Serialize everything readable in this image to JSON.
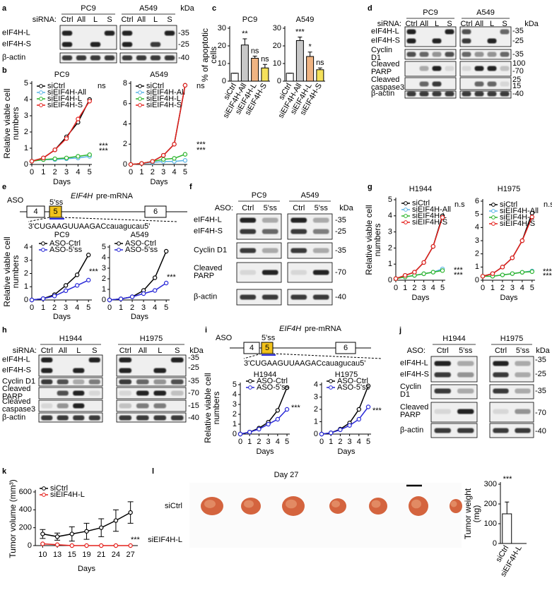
{
  "panel_labels": [
    "a",
    "b",
    "c",
    "d",
    "e",
    "f",
    "g",
    "h",
    "i",
    "j",
    "k",
    "l"
  ],
  "blots": [
    {
      "lane_header": "siRNA:",
      "unit": "kDa",
      "groups": [
        {
          "title": "PC9",
          "lanes": [
            "Ctrl",
            "All",
            "L",
            "S"
          ]
        },
        {
          "title": "A549",
          "lanes": [
            "Ctrl",
            "All",
            "L",
            "S"
          ]
        }
      ],
      "rows": [
        "eIF4H-L",
        "eIF4H-S",
        "β-actin"
      ],
      "markers": [
        "-35",
        "-25",
        "-40"
      ]
    },
    {
      "lane_header": "siRNA:",
      "unit": "kDa",
      "groups": [
        {
          "title": "PC9",
          "lanes": [
            "Ctrl",
            "All",
            "L",
            "S"
          ]
        },
        {
          "title": "A549",
          "lanes": [
            "Ctrl",
            "All",
            "L",
            "S"
          ]
        }
      ],
      "rows": [
        "eIF4H-L",
        "eIF4H-S",
        "Cyclin D1",
        "Cleaved PARP",
        "Cleaved caspase3",
        "β-actin"
      ],
      "markers": [
        "-35",
        "-25",
        "-35",
        "100",
        "-70",
        "25",
        "15",
        "-40"
      ]
    },
    {
      "lane_header": "ASO:",
      "unit": "kDa",
      "groups": [
        {
          "title": "PC9",
          "lanes": [
            "Ctrl",
            "5'ss"
          ]
        },
        {
          "title": "A549",
          "lanes": [
            "Ctrl",
            "5'ss"
          ]
        }
      ],
      "rows": [
        "eIF4H-L",
        "eIF4H-S",
        "Cyclin D1",
        "Cleaved PARP",
        "β-actin"
      ],
      "markers": [
        "-35",
        "-25",
        "-35",
        "-70",
        "-40"
      ]
    },
    {
      "lane_header": "siRNA:",
      "unit": "kDa",
      "groups": [
        {
          "title": "H1944",
          "lanes": [
            "Ctrl",
            "All",
            "L",
            "S"
          ]
        },
        {
          "title": "H1975",
          "lanes": [
            "Ctrl",
            "All",
            "L",
            "S"
          ]
        }
      ],
      "rows": [
        "eIF4H-L",
        "eIF4H-S",
        "Cyclin D1",
        "Cleaved PARP",
        "Cleaved caspase3",
        "β-actin"
      ],
      "markers": [
        "-35",
        "-25",
        "-35",
        "-70",
        "-15",
        "-40"
      ]
    },
    {
      "lane_header": "ASO:",
      "unit": "kDa",
      "groups": [
        {
          "title": "H1944",
          "lanes": [
            "Ctrl",
            "5'ss"
          ]
        },
        {
          "title": "H1975",
          "lanes": [
            "Ctrl",
            "5'ss"
          ]
        }
      ],
      "rows": [
        "eIF4H-L",
        "eIF4H-S",
        "Cyclin D1",
        "Cleaved PARP",
        "β-actin"
      ],
      "markers": [
        "-35",
        "-25",
        "-35",
        "-70",
        "-40"
      ]
    }
  ],
  "diagrams": [
    {
      "aso": "ASO",
      "gene": "EIF4H",
      "label": "pre-mRNA",
      "site": "5'ss",
      "exons": [
        "4",
        "5",
        "6"
      ],
      "sequence": "3'CUGAAGUUAAGACcauagucau5'"
    },
    {
      "aso": "ASO",
      "gene": "EIF4H",
      "label": "pre-mRNA",
      "site": "5'ss",
      "exons": [
        "4",
        "5",
        "6"
      ],
      "sequence": "3'CUGAAGUUAAGACcauagucau5'"
    }
  ],
  "tumor_image": {
    "title": "Day 27",
    "rows": [
      "siCtrl",
      "siEIF4H-L"
    ]
  },
  "chart_data": [
    {
      "type": "line",
      "title": "PC9",
      "y_label": "Relative viable cell numbers",
      "x_label": "Days",
      "x": [
        0,
        1,
        2,
        3,
        4,
        5
      ],
      "xlim": [
        0,
        5.2
      ],
      "xticks": [
        0,
        1,
        2,
        3,
        4,
        5
      ],
      "ylim": [
        0,
        5
      ],
      "yticks": [
        0,
        1,
        2,
        3,
        4,
        5
      ],
      "series": [
        {
          "name": "siCtrl",
          "color": "#000000",
          "values": [
            0.2,
            0.4,
            0.9,
            1.7,
            2.6,
            4.0
          ]
        },
        {
          "name": "siEIF4H-All",
          "color": "#5ab4e6",
          "values": [
            0.2,
            0.3,
            0.3,
            0.35,
            0.4,
            0.5
          ]
        },
        {
          "name": "siEIF4H-L",
          "color": "#2db52d",
          "values": [
            0.2,
            0.3,
            0.35,
            0.4,
            0.5,
            0.6
          ]
        },
        {
          "name": "siEIF4H-S",
          "color": "#e4201c",
          "values": [
            0.2,
            0.4,
            0.9,
            1.6,
            2.8,
            3.9
          ]
        }
      ],
      "annotations": [
        {
          "text": "ns",
          "color": "#e4201c"
        },
        {
          "text": "***",
          "color": "#5ab4e6"
        },
        {
          "text": "***",
          "color": "#2db52d"
        }
      ]
    },
    {
      "type": "line",
      "title": "A549",
      "x_label": "Days",
      "x": [
        0,
        1,
        2,
        3,
        4,
        5
      ],
      "xlim": [
        0,
        5.2
      ],
      "xticks": [
        0,
        1,
        2,
        3,
        4,
        5
      ],
      "ylim": [
        0,
        8
      ],
      "yticks": [
        0,
        2,
        4,
        6,
        8
      ],
      "series": [
        {
          "name": "siCtrl",
          "color": "#000000",
          "values": [
            0,
            0.1,
            0.3,
            0.9,
            2.0,
            7.8
          ]
        },
        {
          "name": "siEIF4H-All",
          "color": "#5ab4e6",
          "values": [
            0,
            0.1,
            0.2,
            0.3,
            0.3,
            0.4
          ]
        },
        {
          "name": "siEIF4H-L",
          "color": "#2db52d",
          "values": [
            0,
            0.1,
            0.3,
            0.5,
            0.6,
            1.0
          ]
        },
        {
          "name": "siEIF4H-S",
          "color": "#e4201c",
          "values": [
            0,
            0.1,
            0.3,
            0.9,
            2.0,
            7.8
          ]
        }
      ],
      "annotations": [
        {
          "text": "ns",
          "color": "#e4201c"
        },
        {
          "text": "***",
          "color": "#2db52d"
        },
        {
          "text": "***",
          "color": "#5ab4e6"
        }
      ]
    },
    {
      "type": "bar",
      "title": "PC9",
      "y_label": "% of apoptotic cells",
      "categories": [
        "siCtrl",
        "siEIF4H-All",
        "siEIF4H-L",
        "siEIF4H-S"
      ],
      "values": [
        4.5,
        20.5,
        13,
        7.5
      ],
      "errors": [
        0,
        3.5,
        1.2,
        2
      ],
      "colors": [
        "#ffffff",
        "#c8c8c8",
        "#f0b482",
        "#f5e15a"
      ],
      "ylim": [
        0,
        30
      ],
      "yticks": [
        0,
        10,
        20,
        30
      ],
      "annotations": [
        {
          "text": "**",
          "color": "#000000"
        },
        {
          "text": "ns",
          "color": "#000000"
        },
        {
          "text": "ns",
          "color": "#000000"
        }
      ]
    },
    {
      "type": "bar",
      "title": "A549",
      "categories": [
        "siCtrl",
        "siEIF4H-All",
        "siEIF4H-L",
        "siEIF4H-S"
      ],
      "values": [
        4.5,
        23,
        14,
        6.5
      ],
      "errors": [
        0,
        2,
        2.5,
        1
      ],
      "colors": [
        "#ffffff",
        "#c8c8c8",
        "#f0b482",
        "#f5e15a"
      ],
      "ylim": [
        0,
        30
      ],
      "yticks": [
        0,
        10,
        20,
        30
      ],
      "annotations": [
        {
          "text": "***",
          "color": "#000000"
        },
        {
          "text": "*",
          "color": "#000000"
        },
        {
          "text": "ns",
          "color": "#000000"
        }
      ]
    },
    {
      "type": "line",
      "title": "PC9",
      "y_label": "Relative viable cell numbers",
      "x_label": "Days",
      "x": [
        0,
        1,
        2,
        3,
        4,
        5
      ],
      "xlim": [
        0,
        5.3
      ],
      "xticks": [
        0,
        1,
        2,
        3,
        4,
        5
      ],
      "ylim": [
        0,
        4
      ],
      "yticks": [
        0,
        1,
        2,
        3,
        4
      ],
      "series": [
        {
          "name": "ASO-Ctrl",
          "color": "#000000",
          "values": [
            0,
            0.1,
            0.4,
            1.1,
            1.9,
            3.4
          ]
        },
        {
          "name": "ASO-5'ss",
          "color": "#2828d8",
          "values": [
            0,
            0.1,
            0.3,
            0.7,
            1.1,
            1.5
          ]
        }
      ],
      "annotations": [
        {
          "text": "***",
          "color": "#2828d8"
        }
      ]
    },
    {
      "type": "line",
      "title": "A549",
      "x_label": "Days",
      "x": [
        0,
        1,
        2,
        3,
        4,
        5
      ],
      "xlim": [
        0,
        5.3
      ],
      "xticks": [
        0,
        1,
        2,
        3,
        4,
        5
      ],
      "ylim": [
        0,
        5
      ],
      "yticks": [
        0,
        1,
        2,
        3,
        4,
        5
      ],
      "series": [
        {
          "name": "ASO-Ctrl",
          "color": "#000000",
          "values": [
            0,
            0.1,
            0.3,
            0.9,
            2.1,
            4.6
          ]
        },
        {
          "name": "ASO-5'ss",
          "color": "#2828d8",
          "values": [
            0,
            0.1,
            0.3,
            0.6,
            0.9,
            1.6
          ]
        }
      ],
      "annotations": [
        {
          "text": "***",
          "color": "#2828d8"
        }
      ]
    },
    {
      "type": "line",
      "title": "H1944",
      "y_label": "Relative viable cell numbers",
      "x_label": "Days",
      "x": [
        0,
        1,
        2,
        3,
        4,
        5
      ],
      "xlim": [
        0,
        5.3
      ],
      "xticks": [
        0,
        1,
        2,
        3,
        4,
        5
      ],
      "ylim": [
        0,
        5
      ],
      "yticks": [
        0,
        1,
        2,
        3,
        4,
        5
      ],
      "series": [
        {
          "name": "siCtrl",
          "color": "#000000",
          "values": [
            0.1,
            0.3,
            0.5,
            1.1,
            2.1,
            4.0
          ]
        },
        {
          "name": "siEIF4H-All",
          "color": "#5ab4e6",
          "values": [
            0.1,
            0.2,
            0.3,
            0.4,
            0.5,
            0.7
          ]
        },
        {
          "name": "siEIF4H-L",
          "color": "#2db52d",
          "values": [
            0.1,
            0.2,
            0.3,
            0.4,
            0.5,
            0.6
          ]
        },
        {
          "name": "siEIF4H-S",
          "color": "#e4201c",
          "values": [
            0.1,
            0.3,
            0.5,
            1.1,
            2.1,
            3.9
          ]
        }
      ],
      "annotations": [
        {
          "text": "n.s",
          "color": "#e4201c"
        },
        {
          "text": "***",
          "color": "#2db52d"
        },
        {
          "text": "***",
          "color": "#5ab4e6"
        }
      ]
    },
    {
      "type": "line",
      "title": "H1975",
      "x_label": "Days",
      "x": [
        0,
        1,
        2,
        3,
        4,
        5
      ],
      "xlim": [
        0,
        5.3
      ],
      "xticks": [
        0,
        1,
        2,
        3,
        4,
        5
      ],
      "ylim": [
        0,
        6
      ],
      "yticks": [
        0,
        1,
        2,
        3,
        4,
        5,
        6
      ],
      "series": [
        {
          "name": "siCtrl",
          "color": "#000000",
          "values": [
            0.3,
            0.5,
            1.0,
            1.7,
            3.0,
            5.1
          ]
        },
        {
          "name": "siEIF4H-All",
          "color": "#5ab4e6",
          "values": [
            0.3,
            0.3,
            0.4,
            0.5,
            0.6,
            0.7
          ]
        },
        {
          "name": "siEIF4H-L",
          "color": "#2db52d",
          "values": [
            0.3,
            0.3,
            0.4,
            0.5,
            0.6,
            0.65
          ]
        },
        {
          "name": "siEIF4H-S",
          "color": "#e4201c",
          "values": [
            0.3,
            0.5,
            1.0,
            1.7,
            3.0,
            4.8
          ]
        }
      ],
      "annotations": [
        {
          "text": "n.s",
          "color": "#e4201c"
        },
        {
          "text": "***",
          "color": "#2db52d"
        },
        {
          "text": "***",
          "color": "#5ab4e6"
        }
      ]
    },
    {
      "type": "line",
      "title": "H1944",
      "y_label": "Relative viable cell numbers",
      "x_label": "Days",
      "x": [
        0,
        1,
        2,
        3,
        4,
        5
      ],
      "xlim": [
        0,
        5.3
      ],
      "xticks": [
        0,
        1,
        2,
        3,
        4,
        5
      ],
      "ylim": [
        0,
        5
      ],
      "yticks": [
        0,
        1,
        2,
        3,
        4,
        5
      ],
      "series": [
        {
          "name": "ASO-Ctrl",
          "color": "#000000",
          "values": [
            0,
            0.2,
            0.6,
            1.2,
            2.4,
            4.7
          ]
        },
        {
          "name": "ASO-5'ss",
          "color": "#2828d8",
          "values": [
            0,
            0.2,
            0.5,
            1.0,
            1.5,
            2.5
          ]
        }
      ],
      "annotations": [
        {
          "text": "***",
          "color": "#2828d8"
        }
      ]
    },
    {
      "type": "line",
      "title": "H1975",
      "x_label": "Days",
      "x": [
        0,
        1,
        2,
        3,
        4,
        5
      ],
      "xlim": [
        0,
        5.3
      ],
      "xticks": [
        0,
        1,
        2,
        3,
        4,
        5
      ],
      "ylim": [
        0,
        4
      ],
      "yticks": [
        0,
        1,
        2,
        3,
        4
      ],
      "series": [
        {
          "name": "ASO-Ctrl",
          "color": "#000000",
          "values": [
            0,
            0.1,
            0.4,
            0.9,
            2.0,
            3.9
          ]
        },
        {
          "name": "ASO-5'ss",
          "color": "#2828d8",
          "values": [
            0,
            0.1,
            0.35,
            0.7,
            1.2,
            2.2
          ]
        }
      ],
      "annotations": [
        {
          "text": "***",
          "color": "#2828d8"
        }
      ]
    },
    {
      "type": "line",
      "y_label": "Tumor volume (mm³)",
      "x_label": "Days",
      "categories": [
        "10",
        "13",
        "15",
        "19",
        "21",
        "24",
        "27"
      ],
      "ylim": [
        0,
        600
      ],
      "yticks": [
        0,
        200,
        400,
        600
      ],
      "series": [
        {
          "name": "siCtrl",
          "color": "#000000",
          "values": [
            130,
            100,
            130,
            160,
            200,
            280,
            370
          ],
          "errors": [
            50,
            40,
            80,
            90,
            100,
            120,
            120
          ]
        },
        {
          "name": "siEIF4H-L",
          "color": "#e4201c",
          "values": [
            20,
            10,
            0,
            0,
            0,
            0,
            0
          ]
        }
      ],
      "annotations": [
        {
          "text": "***",
          "color": "#e4201c"
        }
      ]
    },
    {
      "type": "bar",
      "y_label": "Tumor weight (mg)",
      "categories": [
        "siCtrl",
        "siEIF4H-L"
      ],
      "values": [
        150,
        0
      ],
      "errors": [
        60,
        0
      ],
      "colors": [
        "#ffffff",
        "#ffffff"
      ],
      "ylim": [
        0,
        300
      ],
      "yticks": [
        0,
        100,
        200,
        300
      ],
      "annotations": [
        {
          "text": "***",
          "color": "#e4201c"
        }
      ]
    }
  ]
}
